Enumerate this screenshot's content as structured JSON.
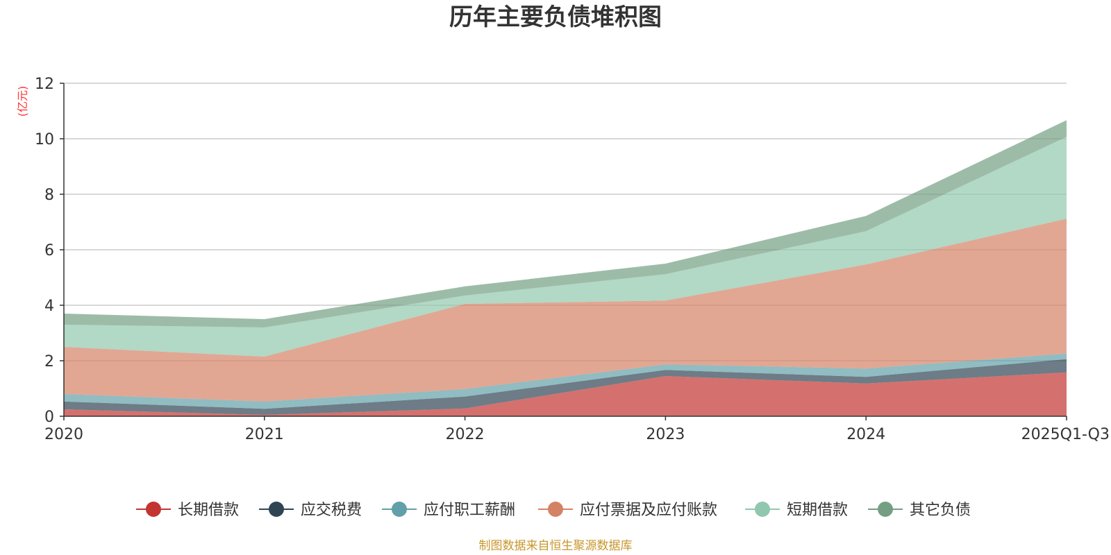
{
  "chart_data": {
    "type": "area",
    "stacked": true,
    "title": "历年主要负债堆积图",
    "ylabel": "(亿元)",
    "xlabel": "",
    "ylim": [
      0,
      12
    ],
    "yticks": [
      0,
      2,
      4,
      6,
      8,
      10,
      12
    ],
    "categories": [
      "2020",
      "2021",
      "2022",
      "2023",
      "2024",
      "2025Q1-Q3"
    ],
    "series": [
      {
        "name": "长期借款",
        "color": "#c23531",
        "values": [
          0.25,
          0.05,
          0.28,
          1.45,
          1.18,
          1.58
        ]
      },
      {
        "name": "应交税费",
        "color": "#2f4554",
        "values": [
          0.28,
          0.22,
          0.43,
          0.22,
          0.24,
          0.48
        ]
      },
      {
        "name": "应付职工薪酬",
        "color": "#61a0a8",
        "values": [
          0.27,
          0.26,
          0.27,
          0.2,
          0.3,
          0.2
        ]
      },
      {
        "name": "应付票据及应付账款",
        "color": "#d48265",
        "values": [
          1.7,
          1.62,
          3.07,
          2.3,
          3.75,
          4.86
        ]
      },
      {
        "name": "短期借款",
        "color": "#91c7ae",
        "values": [
          0.8,
          1.05,
          0.3,
          0.95,
          1.2,
          2.95
        ]
      },
      {
        "name": "其它负债",
        "color": "#749f83",
        "values": [
          0.4,
          0.3,
          0.33,
          0.38,
          0.55,
          0.6
        ]
      }
    ],
    "grid": true,
    "legend_position": "bottom"
  },
  "source_note": "制图数据来自恒生聚源数据库"
}
